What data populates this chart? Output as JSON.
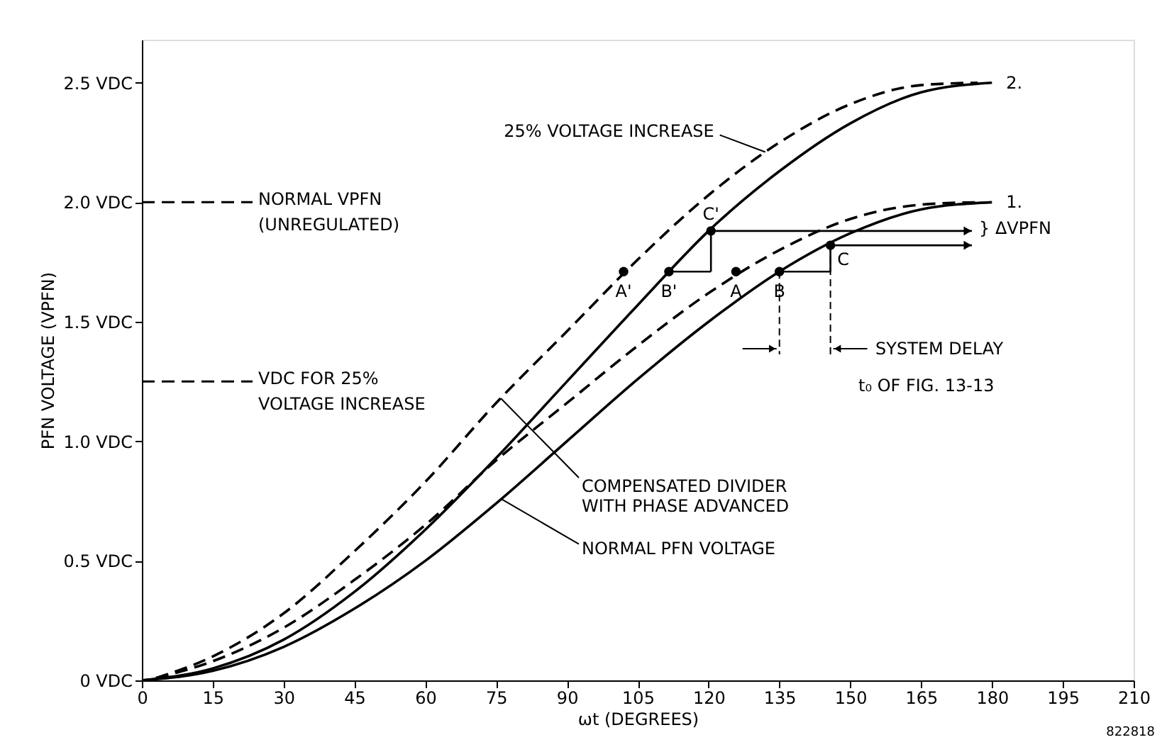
{
  "chart_data": {
    "type": "line",
    "xlabel": "ωt (DEGREES)",
    "ylabel": "PFN VOLTAGE (VPFN)",
    "x": [
      0,
      15,
      30,
      45,
      60,
      75,
      90,
      105,
      120,
      135,
      150,
      165,
      180
    ],
    "series": [
      {
        "color": "#000000",
        "line_style": "solid",
        "values": [
          0,
          0.04,
          0.14,
          0.3,
          0.5,
          0.74,
          1.0,
          1.26,
          1.5,
          1.71,
          1.87,
          1.97,
          2.0
        ]
      },
      {
        "color": "#000000",
        "line_style": "dashed",
        "x": [
          3,
          15,
          30,
          45,
          60,
          75,
          90,
          105,
          120,
          135,
          150,
          165,
          177
        ],
        "values": [
          0.01,
          0.08,
          0.22,
          0.42,
          0.65,
          0.92,
          1.16,
          1.4,
          1.62,
          1.8,
          1.93,
          1.99,
          2.0
        ]
      },
      {
        "color": "#000000",
        "line_style": "solid",
        "values": [
          0,
          0.05,
          0.17,
          0.37,
          0.63,
          0.93,
          1.25,
          1.57,
          1.88,
          2.13,
          2.33,
          2.46,
          2.5
        ]
      },
      {
        "color": "#000000",
        "line_style": "dashed",
        "x": [
          3,
          15,
          30,
          45,
          60,
          75,
          90,
          105,
          120,
          135,
          150,
          165,
          177
        ],
        "values": [
          0.01,
          0.1,
          0.28,
          0.54,
          0.83,
          1.16,
          1.46,
          1.76,
          2.03,
          2.25,
          2.41,
          2.49,
          2.5
        ]
      },
      {
        "type": "scatter",
        "marker": "circle",
        "color": "#000000",
        "x": [
          102,
          111.6,
          125.8,
          135,
          120.5,
          145.8
        ],
        "values": [
          1.71,
          1.71,
          1.71,
          1.71,
          1.88,
          1.82
        ]
      }
    ],
    "xlim": [
      0,
      210
    ],
    "xticks": [
      0,
      15,
      30,
      45,
      60,
      75,
      90,
      105,
      120,
      135,
      150,
      165,
      180,
      195,
      210
    ],
    "ylim": [
      0,
      2.68
    ],
    "yticks": [
      {
        "value": 0,
        "label": "0 VDC"
      },
      {
        "value": 0.5,
        "label": "0.5 VDC"
      },
      {
        "value": 1.0,
        "label": "1.0 VDC"
      },
      {
        "value": 1.5,
        "label": "1.5 VDC"
      },
      {
        "value": 2.0,
        "label": "2.0 VDC"
      },
      {
        "value": 2.5,
        "label": "2.5 VDC"
      }
    ],
    "ref_lines": [
      {
        "axis": "y",
        "value": 2.0,
        "label": "NORMAL VPFN\n(UNREGULATED)",
        "line_style": "dashed"
      },
      {
        "axis": "y",
        "value": 1.25,
        "label": "VDC FOR 25%\nVOLTAGE INCREASE",
        "line_style": "dashed"
      }
    ],
    "annotations": [
      {
        "text": "25% VOLTAGE INCREASE",
        "x": 132,
        "y": 2.21
      },
      {
        "text": "COMPENSATED DIVIDER\nWITH PHASE ADVANCED",
        "x": 76,
        "y": 1.18
      },
      {
        "text": "NORMAL PFN VOLTAGE",
        "x": 76,
        "y": 0.76
      },
      "SYSTEM DELAY",
      "t₀ OF FIG. 13-13",
      "} ΔVPFN",
      {
        "text": "2.",
        "x": 180,
        "y": 2.5
      },
      {
        "text": "1.",
        "x": 180,
        "y": 2.0
      },
      {
        "text": "A'",
        "x": 102,
        "y": 1.71
      },
      {
        "text": "B'",
        "x": 111.6,
        "y": 1.71
      },
      {
        "text": "A",
        "x": 125.8,
        "y": 1.71
      },
      {
        "text": "B",
        "x": 135,
        "y": 1.71
      },
      {
        "text": "C'",
        "x": 120.5,
        "y": 1.88
      },
      {
        "text": "C",
        "x": 145.8,
        "y": 1.82
      },
      "822818"
    ],
    "grid": false
  }
}
